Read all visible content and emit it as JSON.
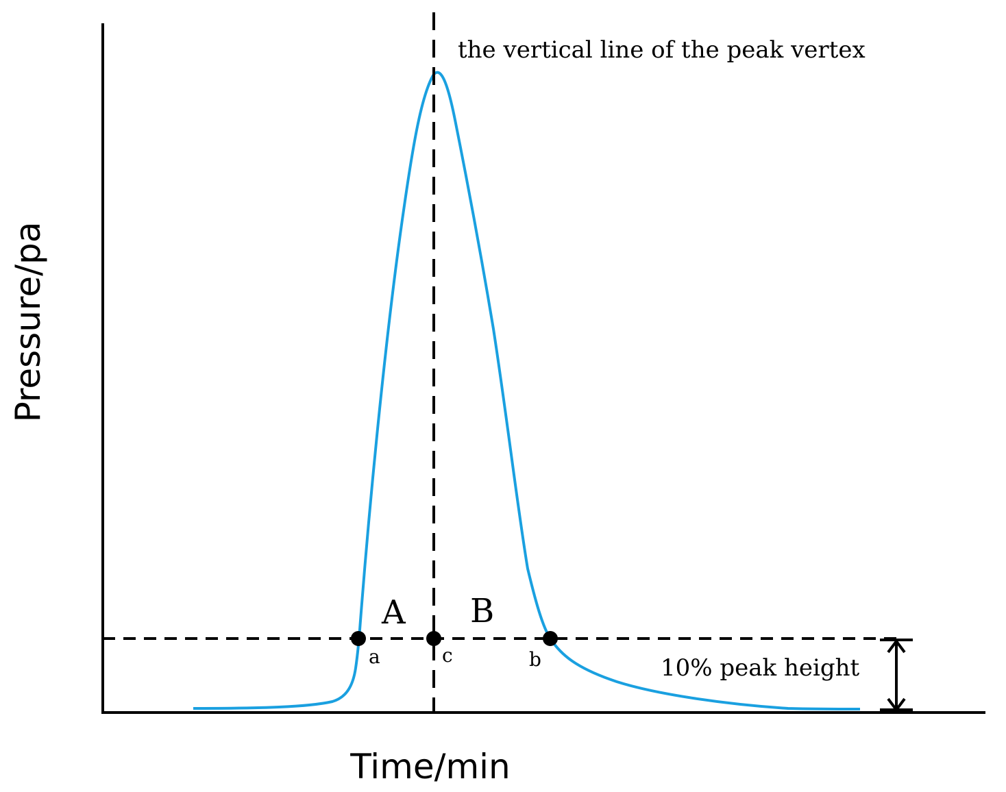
{
  "axes": {
    "x_label": "Time/min",
    "y_label": "Pressure/pa"
  },
  "annotations": {
    "vertex_line": "the vertical line of the peak vertex",
    "region_left": "A",
    "region_right": "B",
    "point_a": "a",
    "point_b": "b",
    "point_c": "c",
    "height_label": "10% peak height"
  },
  "colors": {
    "curve": "#1aa0e0",
    "lines": "#000000",
    "background": "#ffffff"
  }
}
